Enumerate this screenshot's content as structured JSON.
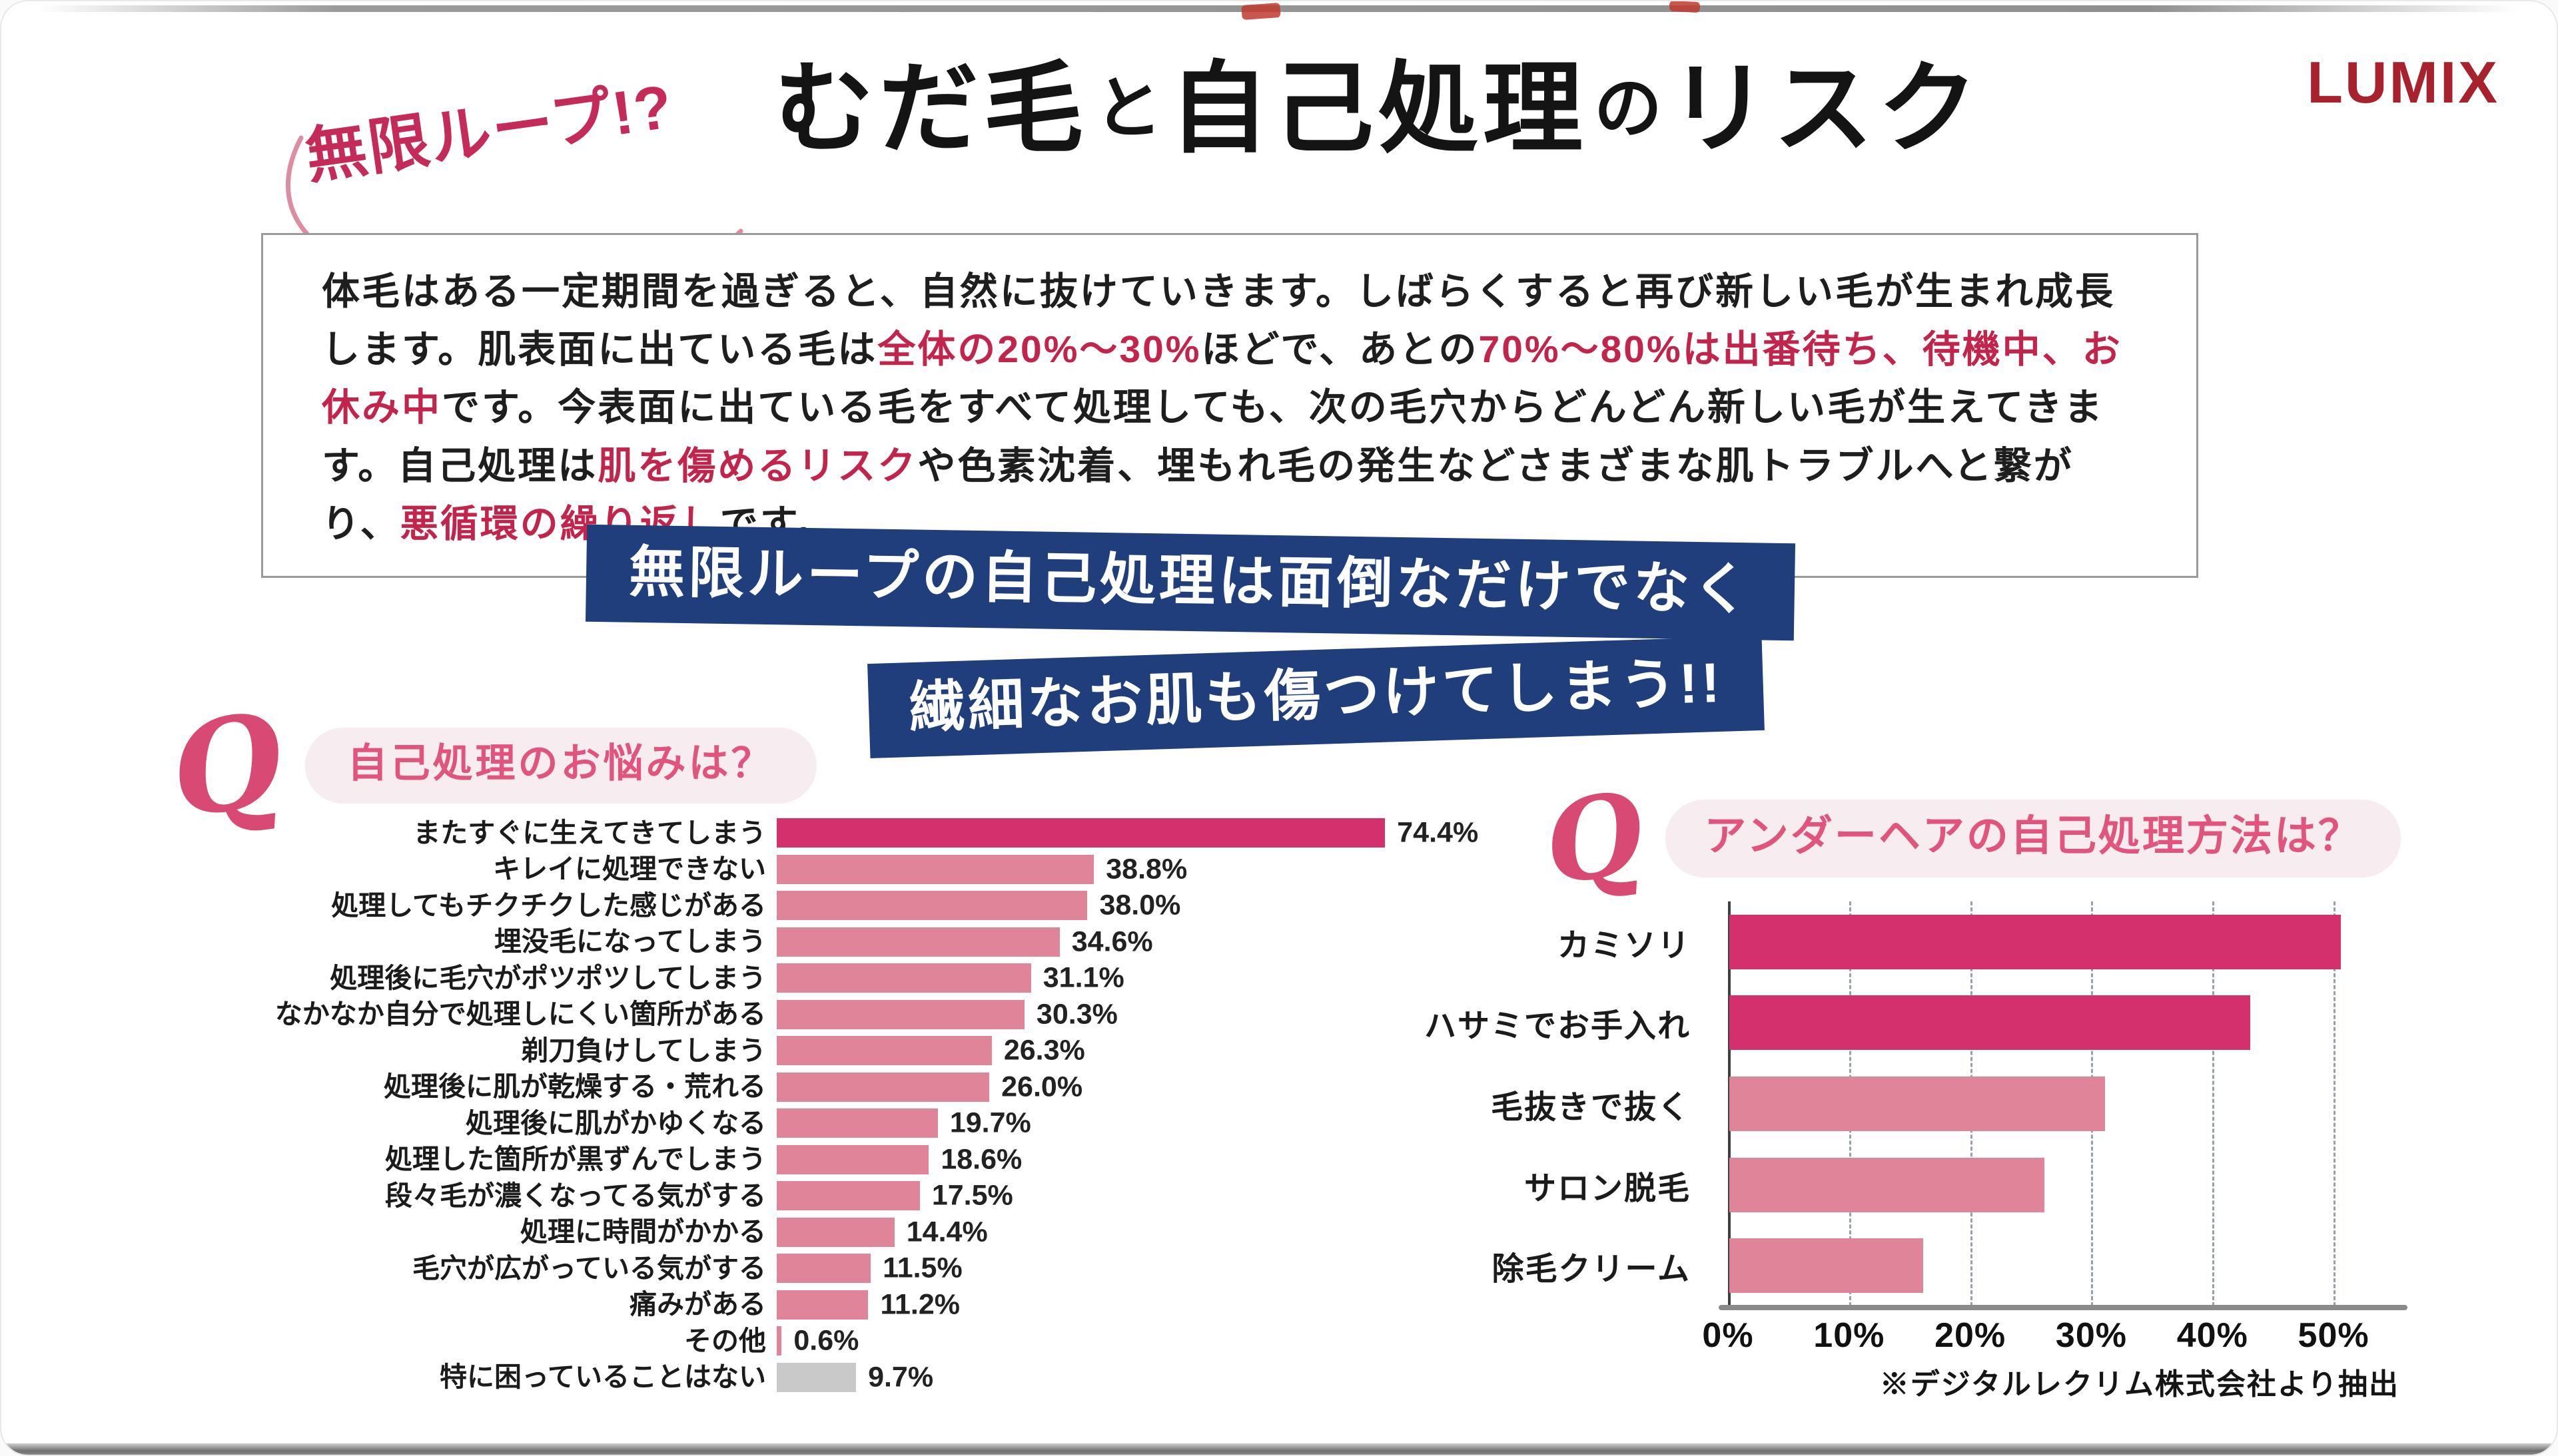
{
  "page": {
    "logo": "LUMIX",
    "logo_color": "#A8222E",
    "bubble_text": "無限ループ!?",
    "title_parts": [
      {
        "text": "むだ毛",
        "small": false
      },
      {
        "text": "と",
        "small": true
      },
      {
        "text": "自己処理",
        "small": false
      },
      {
        "text": "の",
        "small": true
      },
      {
        "text": "リスク",
        "small": false
      }
    ],
    "intro_segments": [
      {
        "text": "体毛はある一定期間を過ぎると、自然に抜けていきます。しばらくすると再び新しい毛が生まれ成長します。肌表面に出ている毛は",
        "em": false
      },
      {
        "text": "全体の20%～30%",
        "em": true
      },
      {
        "text": "ほどで、あとの",
        "em": false
      },
      {
        "text": "70%～80%は出番待ち、待機中、お休み中",
        "em": true
      },
      {
        "text": "です。今表面に出ている毛をすべて処理しても、次の毛穴からどんどん新しい毛が生えてきます。自己処理は",
        "em": false
      },
      {
        "text": "肌を傷めるリスク",
        "em": true
      },
      {
        "text": "や色素沈着、埋もれ毛の発生などさまざまな肌トラブルへと繋がり、",
        "em": false
      },
      {
        "text": "悪循環の繰り返し",
        "em": true
      },
      {
        "text": "です。",
        "em": false
      }
    ],
    "banners": [
      "無限ループの自己処理は面倒なだけでなく",
      "繊細なお肌も傷つけてしまう!!"
    ],
    "banner_color": "#203D7C",
    "accent_red": "#C2244C",
    "q_symbol": "Q",
    "footnote": "※デジタルレクリム株式会社より抽出"
  },
  "chart_data": [
    {
      "type": "bar",
      "orientation": "horizontal",
      "title": "自己処理のお悩みは？",
      "unit": "%",
      "xlim": [
        0,
        80
      ],
      "grid": false,
      "value_label_position": "outside-right",
      "categories": [
        "またすぐに生えてきてしまう",
        "キレイに処理できない",
        "処理してもチクチクした感じがある",
        "埋没毛になってしまう",
        "処理後に毛穴がポツポツしてしまう",
        "なかなか自分で処理しにくい箇所がある",
        "剃刀負けしてしまう",
        "処理後に肌が乾燥する・荒れる",
        "処理後に肌がかゆくなる",
        "処理した箇所が黒ずんでしまう",
        "段々毛が濃くなってる気がする",
        "処理に時間がかかる",
        "毛穴が広がっている気がする",
        "痛みがある",
        "その他",
        "特に困っていることはない"
      ],
      "values": [
        74.4,
        38.8,
        38.0,
        34.6,
        31.1,
        30.3,
        26.3,
        26.0,
        19.7,
        18.6,
        17.5,
        14.4,
        11.5,
        11.2,
        0.6,
        9.7
      ],
      "value_labels": [
        "74.4%",
        "38.8%",
        "38.0%",
        "34.6%",
        "31.1%",
        "30.3%",
        "26.3%",
        "26.0%",
        "19.7%",
        "18.6%",
        "17.5%",
        "14.4%",
        "11.5%",
        "11.2%",
        "0.6%",
        "9.7%"
      ],
      "bar_styles": [
        "highlight",
        "normal",
        "normal",
        "normal",
        "normal",
        "normal",
        "normal",
        "normal",
        "normal",
        "normal",
        "normal",
        "normal",
        "normal",
        "normal",
        "normal",
        "muted"
      ],
      "colors": {
        "highlight": "#D4306E",
        "normal": "#E0849A",
        "muted": "#C9C9C9"
      }
    },
    {
      "type": "bar",
      "orientation": "horizontal",
      "title": "アンダーヘアの自己処理方法は？",
      "unit": "%",
      "xlim": [
        0,
        55
      ],
      "grid": true,
      "grid_style": "vertical-dashed",
      "x_ticks": [
        "0%",
        "10%",
        "20%",
        "30%",
        "40%",
        "50%"
      ],
      "x_tick_values": [
        0,
        10,
        20,
        30,
        40,
        50
      ],
      "categories": [
        "カミソリ",
        "ハサミでお手入れ",
        "毛抜きで抜く",
        "サロン脱毛",
        "除毛クリーム"
      ],
      "values": [
        50.5,
        43,
        31,
        26,
        16
      ],
      "bar_styles": [
        "dark",
        "dark",
        "light",
        "light",
        "light"
      ],
      "colors": {
        "dark": "#D4306E",
        "light": "#E0849A"
      },
      "source_note": "※デジタルレクリム株式会社より抽出"
    }
  ]
}
